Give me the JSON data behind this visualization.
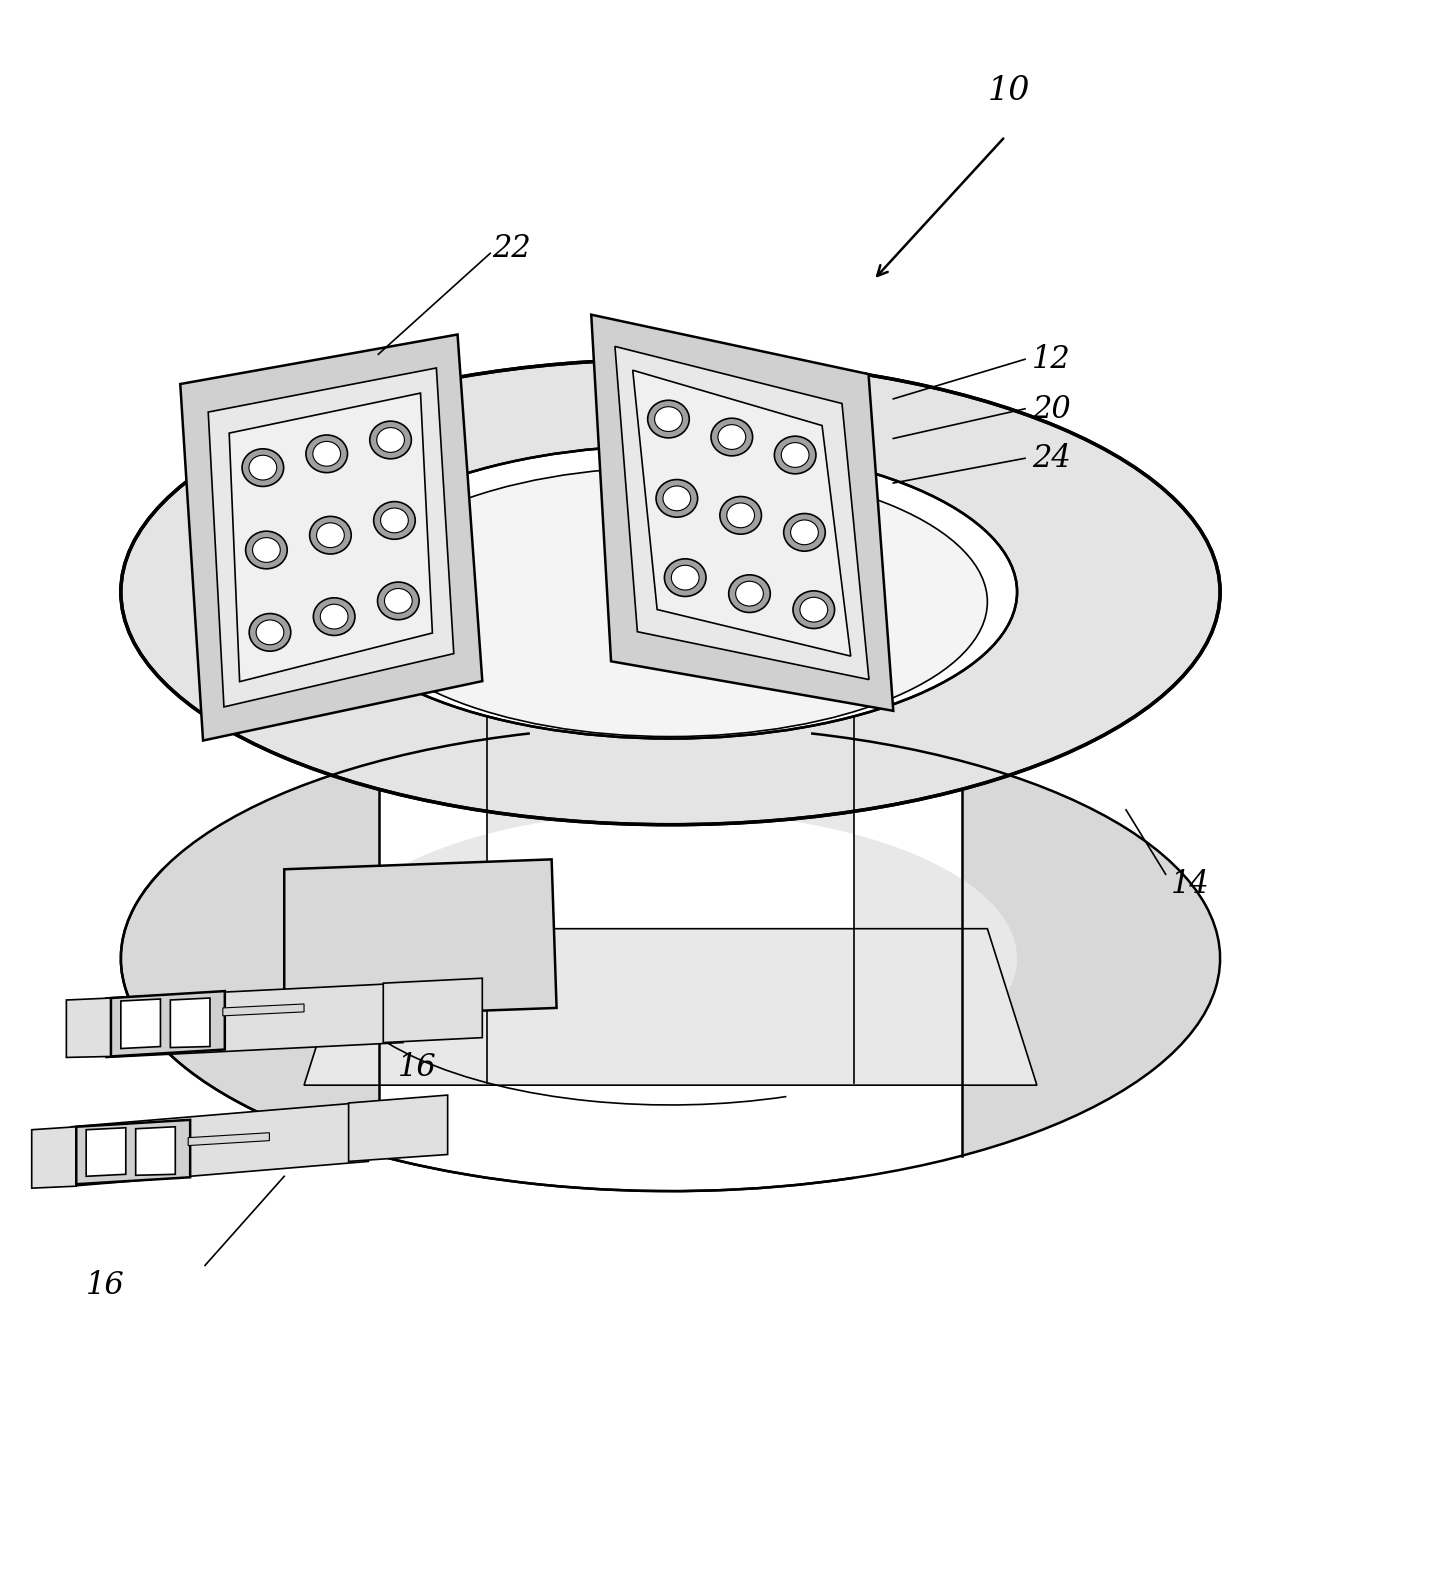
{
  "bg_color": "#ffffff",
  "line_color": "#000000",
  "lw_thin": 1.2,
  "lw_med": 1.8,
  "lw_thick": 2.5,
  "label_fontsize": 20,
  "figsize": [
    14.37,
    15.9
  ],
  "dpi": 100
}
